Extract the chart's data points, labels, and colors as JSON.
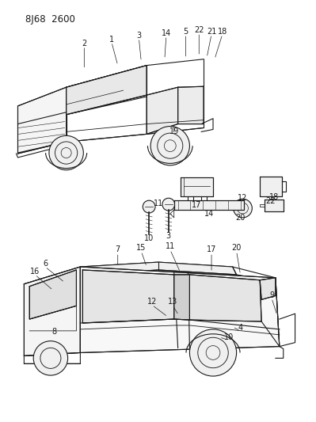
{
  "title": "8J68  2600",
  "bg": "#ffffff",
  "lc": "#1a1a1a",
  "fig_w": 3.99,
  "fig_h": 5.33,
  "dpi": 100,
  "label_fs": 7.0,
  "title_fs": 8.5
}
